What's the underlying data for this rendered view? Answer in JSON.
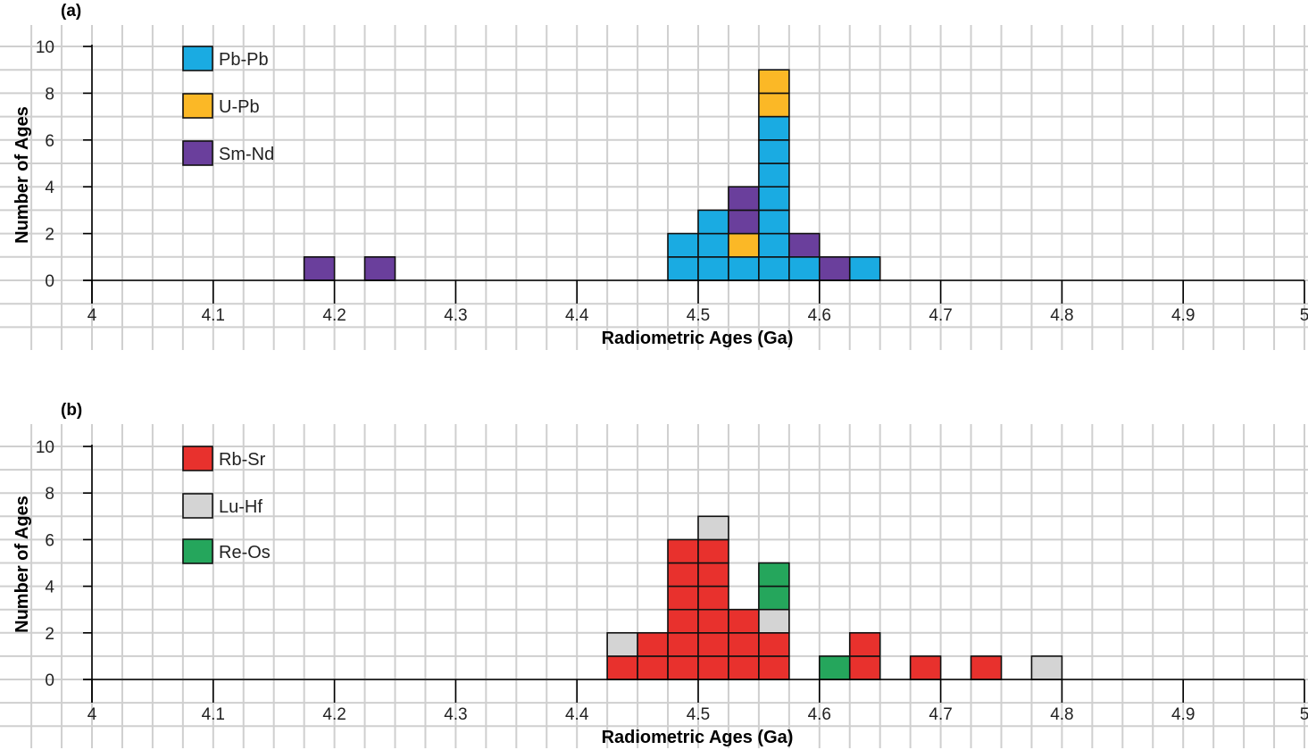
{
  "chart_data": [
    {
      "panel_label": "(a)",
      "type": "bar",
      "subtype": "stacked-dot-histogram",
      "xlabel": "Radiometric Ages (Ga)",
      "ylabel": "Number of Ages",
      "xlim": [
        4,
        5
      ],
      "ylim": [
        0,
        10
      ],
      "x_ticks": [
        "4",
        "4.1",
        "4.2",
        "4.3",
        "4.4",
        "4.5",
        "4.6",
        "4.7",
        "4.8",
        "4.9",
        "5"
      ],
      "y_ticks": [
        "0",
        "2",
        "4",
        "6",
        "8",
        "10"
      ],
      "bin_width": 0.025,
      "grid": true,
      "legend_position": "top-left",
      "series": [
        {
          "name": "Pb-Pb",
          "color": "#1aabe2"
        },
        {
          "name": "U-Pb",
          "color": "#fbb826"
        },
        {
          "name": "Sm-Nd",
          "color": "#6a3f9c"
        }
      ],
      "bins": [
        {
          "x": 4.1875,
          "stack": [
            "Sm-Nd"
          ]
        },
        {
          "x": 4.2375,
          "stack": [
            "Sm-Nd"
          ]
        },
        {
          "x": 4.4875,
          "stack": [
            "Pb-Pb",
            "Pb-Pb"
          ]
        },
        {
          "x": 4.5125,
          "stack": [
            "Pb-Pb",
            "Pb-Pb",
            "Pb-Pb"
          ]
        },
        {
          "x": 4.5375,
          "stack": [
            "Pb-Pb",
            "U-Pb",
            "Sm-Nd",
            "Sm-Nd"
          ]
        },
        {
          "x": 4.5625,
          "stack": [
            "Pb-Pb",
            "Pb-Pb",
            "Pb-Pb",
            "Pb-Pb",
            "Pb-Pb",
            "Pb-Pb",
            "Pb-Pb",
            "U-Pb",
            "U-Pb"
          ]
        },
        {
          "x": 4.5875,
          "stack": [
            "Pb-Pb",
            "Sm-Nd"
          ]
        },
        {
          "x": 4.6125,
          "stack": [
            "Sm-Nd"
          ]
        },
        {
          "x": 4.6375,
          "stack": [
            "Pb-Pb"
          ]
        }
      ]
    },
    {
      "panel_label": "(b)",
      "type": "bar",
      "subtype": "stacked-dot-histogram",
      "xlabel": "Radiometric Ages (Ga)",
      "ylabel": "Number of Ages",
      "xlim": [
        4,
        5
      ],
      "ylim": [
        0,
        10
      ],
      "x_ticks": [
        "4",
        "4.1",
        "4.2",
        "4.3",
        "4.4",
        "4.5",
        "4.6",
        "4.7",
        "4.8",
        "4.9",
        "5"
      ],
      "y_ticks": [
        "0",
        "2",
        "4",
        "6",
        "8",
        "10"
      ],
      "bin_width": 0.025,
      "grid": true,
      "legend_position": "top-left",
      "series": [
        {
          "name": "Rb-Sr",
          "color": "#e8312d"
        },
        {
          "name": "Lu-Hf",
          "color": "#d4d4d4"
        },
        {
          "name": "Re-Os",
          "color": "#25a65c"
        }
      ],
      "bins": [
        {
          "x": 4.4375,
          "stack": [
            "Rb-Sr",
            "Lu-Hf"
          ]
        },
        {
          "x": 4.4625,
          "stack": [
            "Rb-Sr",
            "Rb-Sr"
          ]
        },
        {
          "x": 4.4875,
          "stack": [
            "Rb-Sr",
            "Rb-Sr",
            "Rb-Sr",
            "Rb-Sr",
            "Rb-Sr",
            "Rb-Sr"
          ]
        },
        {
          "x": 4.5125,
          "stack": [
            "Rb-Sr",
            "Rb-Sr",
            "Rb-Sr",
            "Rb-Sr",
            "Rb-Sr",
            "Rb-Sr",
            "Lu-Hf"
          ]
        },
        {
          "x": 4.5375,
          "stack": [
            "Rb-Sr",
            "Rb-Sr",
            "Rb-Sr"
          ]
        },
        {
          "x": 4.5625,
          "stack": [
            "Rb-Sr",
            "Rb-Sr",
            "Lu-Hf",
            "Re-Os",
            "Re-Os"
          ]
        },
        {
          "x": 4.6125,
          "stack": [
            "Re-Os"
          ]
        },
        {
          "x": 4.6375,
          "stack": [
            "Rb-Sr",
            "Rb-Sr"
          ]
        },
        {
          "x": 4.6875,
          "stack": [
            "Rb-Sr"
          ]
        },
        {
          "x": 4.7375,
          "stack": [
            "Rb-Sr"
          ]
        },
        {
          "x": 4.7875,
          "stack": [
            "Lu-Hf"
          ]
        }
      ]
    }
  ]
}
